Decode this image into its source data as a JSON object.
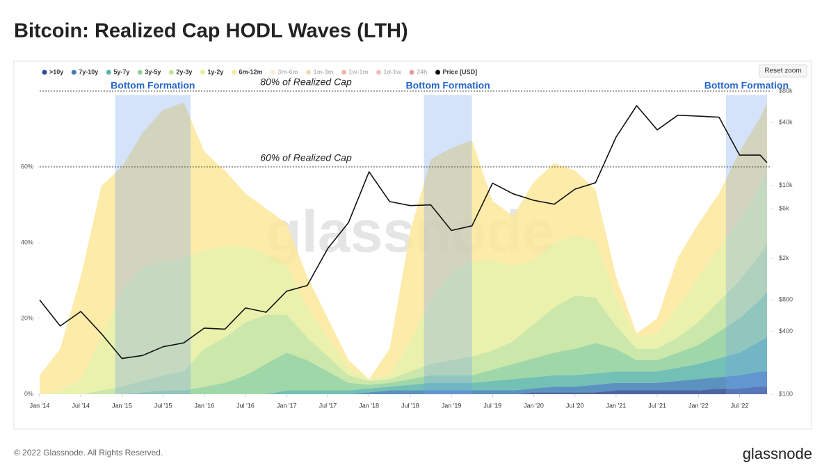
{
  "chart_data": {
    "type": "area",
    "title": "Bitcoin: Realized Cap HODL Waves (LTH)",
    "x": [
      "2014-01",
      "2014-04",
      "2014-07",
      "2014-10",
      "2015-01",
      "2015-04",
      "2015-07",
      "2015-10",
      "2016-01",
      "2016-04",
      "2016-07",
      "2016-10",
      "2017-01",
      "2017-04",
      "2017-07",
      "2017-10",
      "2018-01",
      "2018-04",
      "2018-07",
      "2018-10",
      "2019-01",
      "2019-04",
      "2019-07",
      "2019-10",
      "2020-01",
      "2020-04",
      "2020-07",
      "2020-10",
      "2021-01",
      "2021-04",
      "2021-07",
      "2021-10",
      "2022-01",
      "2022-04",
      "2022-07",
      "2022-10",
      "2022-11"
    ],
    "xlim": [
      "2014-01",
      "2022-11"
    ],
    "xticks": [
      {
        "value": "2014-01",
        "label": "Jan '14"
      },
      {
        "value": "2014-07",
        "label": "Jul '14"
      },
      {
        "value": "2015-01",
        "label": "Jan '15"
      },
      {
        "value": "2015-07",
        "label": "Jul '15"
      },
      {
        "value": "2016-01",
        "label": "Jan '16"
      },
      {
        "value": "2016-07",
        "label": "Jul '16"
      },
      {
        "value": "2017-01",
        "label": "Jan '17"
      },
      {
        "value": "2017-07",
        "label": "Jul '17"
      },
      {
        "value": "2018-01",
        "label": "Jan '18"
      },
      {
        "value": "2018-07",
        "label": "Jul '18"
      },
      {
        "value": "2019-01",
        "label": "Jan '19"
      },
      {
        "value": "2019-07",
        "label": "Jul '19"
      },
      {
        "value": "2020-01",
        "label": "Jan '20"
      },
      {
        "value": "2020-07",
        "label": "Jul '20"
      },
      {
        "value": "2021-01",
        "label": "Jan '21"
      },
      {
        "value": "2021-07",
        "label": "Jul '21"
      },
      {
        "value": "2022-01",
        "label": "Jan '22"
      },
      {
        "value": "2022-07",
        "label": "Jul '22"
      }
    ],
    "series": [
      {
        "name": ">10y",
        "color": "#2f4b8f",
        "values": [
          0,
          0,
          0,
          0,
          0,
          0,
          0,
          0,
          0,
          0,
          0,
          0,
          0,
          0,
          0,
          0,
          0,
          0,
          0,
          0,
          0,
          0,
          0,
          0,
          0.5,
          0.5,
          0.5,
          0.5,
          1,
          1,
          1,
          1,
          1,
          1.5,
          1.5,
          2,
          2
        ]
      },
      {
        "name": "7y-10y",
        "color": "#3f7fb5",
        "values": [
          0,
          0,
          0,
          0,
          0,
          0,
          0,
          0,
          0,
          0,
          0,
          0,
          0,
          0,
          0,
          0,
          0.5,
          1,
          1,
          1,
          1,
          1,
          1,
          1,
          1,
          1.5,
          1.5,
          2,
          2,
          2,
          2,
          2.5,
          3,
          3,
          3.5,
          4,
          4
        ]
      },
      {
        "name": "5y-7y",
        "color": "#5bb5a8",
        "values": [
          0,
          0,
          0,
          0,
          0,
          0,
          0,
          0,
          0,
          0,
          0,
          0,
          1,
          1,
          1,
          1,
          1,
          1,
          1.5,
          2,
          2,
          2,
          2.5,
          3,
          3,
          3,
          3,
          3,
          3,
          3,
          3,
          3.5,
          4,
          5,
          6,
          8,
          9
        ]
      },
      {
        "name": "3y-5y",
        "color": "#8fd09a",
        "values": [
          0,
          0,
          0,
          0,
          0,
          0.5,
          1,
          1,
          2,
          3,
          5,
          8,
          10,
          8,
          5,
          2,
          1,
          1,
          1.5,
          2,
          2,
          2,
          3,
          4,
          5,
          6,
          7,
          8,
          6,
          3,
          3,
          4,
          5,
          7,
          9,
          11,
          12
        ]
      },
      {
        "name": "2y-3y",
        "color": "#c2e39b",
        "values": [
          0,
          0,
          0,
          1,
          2,
          3,
          4,
          5,
          10,
          12,
          14,
          13,
          10,
          6,
          4,
          2,
          1,
          1,
          2,
          3,
          4,
          5,
          5,
          6,
          9,
          12,
          14,
          12,
          6,
          3,
          3,
          4,
          6,
          8,
          10,
          12,
          13
        ]
      },
      {
        "name": "1y-2y",
        "color": "#e6ef9e",
        "values": [
          0,
          1,
          4,
          14,
          25,
          30,
          30,
          30,
          26,
          24,
          20,
          16,
          13,
          8,
          5,
          2,
          0.5,
          1,
          8,
          17,
          23,
          25,
          24,
          20,
          17,
          17,
          16,
          15,
          8,
          3,
          4,
          8,
          12,
          14,
          16,
          18,
          19
        ]
      },
      {
        "name": "6m-12m",
        "color": "#fbe89a",
        "values": [
          5,
          11,
          27,
          40,
          33,
          35.5,
          40,
          41,
          26,
          20,
          14,
          12,
          11,
          8,
          5,
          2,
          0,
          7,
          29,
          37,
          33,
          32,
          15.5,
          13,
          20.5,
          21,
          17,
          13.5,
          5,
          1,
          4,
          13,
          14,
          14.5,
          18,
          18,
          18
        ]
      },
      {
        "name": "Price [USD]",
        "color": "#111111",
        "axis": "y2",
        "type": "line",
        "values": [
          800,
          450,
          620,
          380,
          220,
          235,
          285,
          310,
          430,
          420,
          670,
          610,
          970,
          1100,
          2500,
          4400,
          13500,
          7000,
          6400,
          6500,
          3700,
          4100,
          10500,
          8300,
          7200,
          6600,
          9200,
          10600,
          29000,
          58000,
          34000,
          47000,
          46000,
          45000,
          19500,
          19500,
          16500
        ]
      }
    ],
    "hidden_series": [
      {
        "name": "3m-6m",
        "color": "#f0dca0"
      },
      {
        "name": "1m-3m",
        "color": "#e0b070"
      },
      {
        "name": "1w-1m",
        "color": "#e07050"
      },
      {
        "name": "1d-1w",
        "color": "#e08080"
      },
      {
        "name": "24h",
        "color": "#c04040"
      }
    ],
    "ylim": [
      0,
      80
    ],
    "yticks": [
      {
        "value": 0,
        "label": "0%"
      },
      {
        "value": 20,
        "label": "20%"
      },
      {
        "value": 40,
        "label": "40%"
      },
      {
        "value": 60,
        "label": "60%"
      }
    ],
    "y2lim": [
      100,
      80000
    ],
    "y2_log": true,
    "y2ticks": [
      {
        "value": 100,
        "label": "$100"
      },
      {
        "value": 400,
        "label": "$400"
      },
      {
        "value": 800,
        "label": "$800"
      },
      {
        "value": 2000,
        "label": "$2k"
      },
      {
        "value": 6000,
        "label": "$6k"
      },
      {
        "value": 10000,
        "label": "$10k"
      },
      {
        "value": 40000,
        "label": "$40k"
      },
      {
        "value": 80000,
        "label": "$80k"
      }
    ],
    "reference_lines": [
      {
        "label": "80% of Realized Cap",
        "value": 80
      },
      {
        "label": "60% of Realized Cap",
        "value": 60
      }
    ],
    "highlight_bands": [
      {
        "label": "Bottom Formation",
        "start": "2014-12",
        "end": "2015-11"
      },
      {
        "label": "Bottom Formation",
        "start": "2018-09",
        "end": "2019-04"
      },
      {
        "label": "Bottom Formation",
        "start": "2022-05",
        "end": "2022-11"
      }
    ],
    "band_color": "#6f9ff0",
    "watermark": "glassnode"
  },
  "ui": {
    "reset_button": "Reset zoom",
    "copyright": "© 2022 Glassnode. All Rights Reserved.",
    "logo": "glassnode"
  }
}
